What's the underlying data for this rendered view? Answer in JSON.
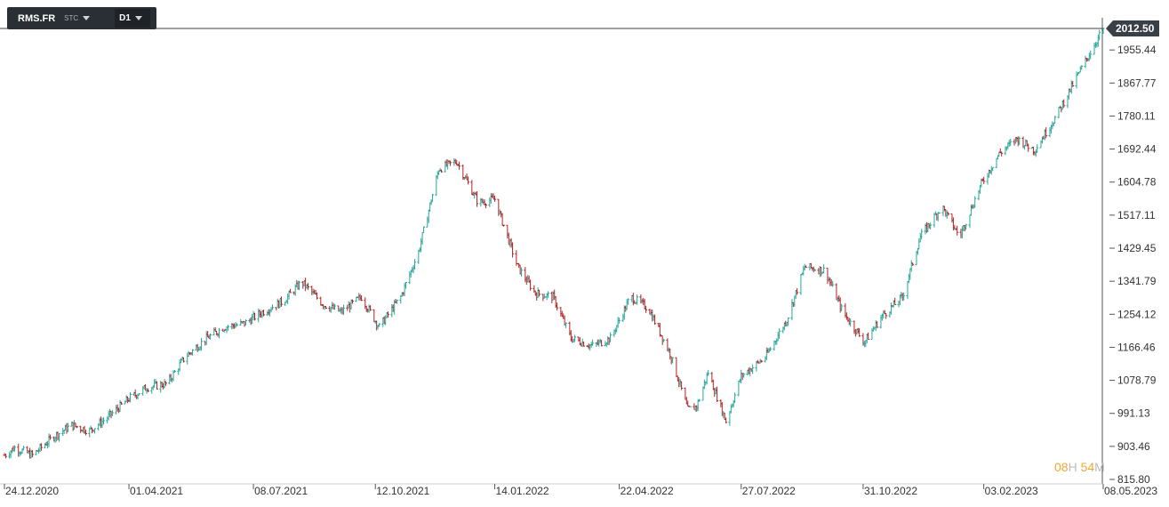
{
  "toolbar": {
    "symbol": "RMS.FR",
    "type": "STC",
    "timeframe": "D1"
  },
  "timer": {
    "hours": "08",
    "hours_unit": "H",
    "minutes": "54",
    "minutes_unit": "M"
  },
  "colors": {
    "up": "#26a69a",
    "down": "#b22222",
    "price_tag": "#3a4048",
    "axis": "#555555"
  },
  "chart_data": {
    "type": "ohlc",
    "title": "",
    "current_price": "2012.50",
    "y_ticks": [
      "1955.44",
      "1867.77",
      "1780.11",
      "1692.44",
      "1604.78",
      "1517.11",
      "1429.45",
      "1341.79",
      "1254.12",
      "1166.46",
      "1078.79",
      "991.13",
      "903.46",
      "815.80"
    ],
    "x_ticks": [
      "24.12.2020",
      "01.04.2021",
      "08.07.2021",
      "12.10.2021",
      "14.01.2022",
      "22.04.2022",
      "27.07.2022",
      "31.10.2022",
      "03.02.2023",
      "08.05.2023"
    ],
    "ylim": [
      815.8,
      2012.5
    ],
    "path": [
      [
        "24.12.2020",
        880
      ],
      [
        "01.01.2021",
        900
      ],
      [
        "15.01.2021",
        880
      ],
      [
        "01.02.2021",
        930
      ],
      [
        "15.02.2021",
        960
      ],
      [
        "01.03.2021",
        945
      ],
      [
        "15.03.2021",
        980
      ],
      [
        "01.04.2021",
        1030
      ],
      [
        "15.04.2021",
        1060
      ],
      [
        "01.05.2021",
        1070
      ],
      [
        "15.05.2021",
        1140
      ],
      [
        "01.06.2021",
        1190
      ],
      [
        "15.06.2021",
        1220
      ],
      [
        "01.07.2021",
        1230
      ],
      [
        "15.07.2021",
        1260
      ],
      [
        "01.08.2021",
        1290
      ],
      [
        "15.08.2021",
        1340
      ],
      [
        "01.09.2021",
        1280
      ],
      [
        "15.09.2021",
        1260
      ],
      [
        "01.10.2021",
        1300
      ],
      [
        "15.10.2021",
        1220
      ],
      [
        "01.11.2021",
        1300
      ],
      [
        "15.11.2021",
        1420
      ],
      [
        "01.12.2021",
        1640
      ],
      [
        "15.12.2021",
        1660
      ],
      [
        "01.01.2022",
        1550
      ],
      [
        "14.01.2022",
        1560
      ],
      [
        "01.02.2022",
        1380
      ],
      [
        "15.02.2022",
        1310
      ],
      [
        "01.03.2022",
        1300
      ],
      [
        "15.03.2022",
        1190
      ],
      [
        "01.04.2022",
        1170
      ],
      [
        "15.04.2022",
        1190
      ],
      [
        "01.05.2022",
        1300
      ],
      [
        "15.05.2022",
        1270
      ],
      [
        "01.06.2022",
        1150
      ],
      [
        "15.06.2022",
        1000
      ],
      [
        "22.06.2022",
        1010
      ],
      [
        "01.07.2022",
        1100
      ],
      [
        "15.07.2022",
        970
      ],
      [
        "27.07.2022",
        1090
      ],
      [
        "15.08.2022",
        1140
      ],
      [
        "01.09.2022",
        1240
      ],
      [
        "15.09.2022",
        1380
      ],
      [
        "01.10.2022",
        1370
      ],
      [
        "15.10.2022",
        1260
      ],
      [
        "01.11.2022",
        1180
      ],
      [
        "15.11.2022",
        1250
      ],
      [
        "01.12.2022",
        1300
      ],
      [
        "15.12.2022",
        1460
      ],
      [
        "01.01.2023",
        1540
      ],
      [
        "15.01.2023",
        1460
      ],
      [
        "01.02.2023",
        1600
      ],
      [
        "15.02.2023",
        1680
      ],
      [
        "01.03.2023",
        1720
      ],
      [
        "15.03.2023",
        1690
      ],
      [
        "01.04.2023",
        1780
      ],
      [
        "15.04.2023",
        1870
      ],
      [
        "08.05.2023",
        2012.5
      ]
    ]
  }
}
